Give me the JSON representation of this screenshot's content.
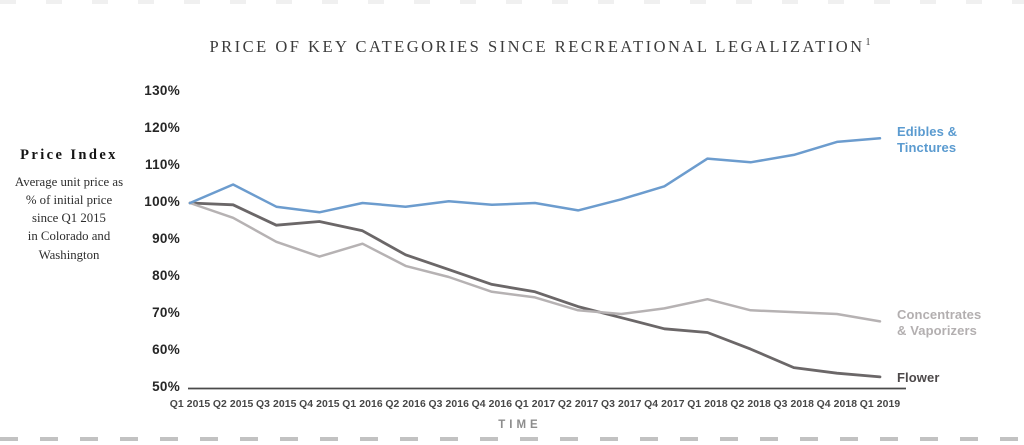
{
  "title": {
    "text": "PRICE OF KEY CATEGORIES SINCE RECREATIONAL LEGALIZATION",
    "superscript": "1"
  },
  "sidebar": {
    "heading": "Price Index",
    "description_lines": [
      "Average unit price as",
      "% of initial price",
      "since Q1 2015",
      "in Colorado and",
      "Washington"
    ]
  },
  "axes": {
    "x_label": "TIME",
    "axis_color": "#4a4a4a"
  },
  "legend": [
    {
      "label": "Edibles & Tinctures",
      "lines": [
        "Edibles &",
        "Tinctures"
      ],
      "color": "#5b9bd0",
      "series_index": 0
    },
    {
      "label": "Concentrates & Vaporizers",
      "lines": [
        "Concentrates",
        "& Vaporizers"
      ],
      "color": "#b3afb0",
      "series_index": 1
    },
    {
      "label": "Flower",
      "lines": [
        "Flower"
      ],
      "color": "#4d494a",
      "series_index": 2
    }
  ],
  "chart_data": {
    "type": "line",
    "title": "PRICE OF KEY CATEGORIES SINCE RECREATIONAL LEGALIZATION",
    "xlabel": "TIME",
    "ylabel": "Price Index (average unit price as % of initial price since Q1 2015 in Colorado and Washington)",
    "categories": [
      "Q1 2015",
      "Q2 2015",
      "Q3 2015",
      "Q4 2015",
      "Q1 2016",
      "Q2 2016",
      "Q3 2016",
      "Q4 2016",
      "Q1 2017",
      "Q2 2017",
      "Q3 2017",
      "Q4 2017",
      "Q1 2018",
      "Q2 2018",
      "Q3 2018",
      "Q4 2018",
      "Q1 2019"
    ],
    "series": [
      {
        "name": "Edibles & Tinctures",
        "color": "#6c9cce",
        "values": [
          100,
          105,
          99,
          97.5,
          100,
          99,
          100.5,
          99.5,
          100,
          98,
          101,
          104.5,
          112,
          111,
          113,
          116.5,
          117.5
        ]
      },
      {
        "name": "Concentrates & Vaporizers",
        "color": "#b6b2b3",
        "values": [
          100,
          96,
          89.5,
          85.5,
          89,
          83,
          80,
          76,
          74.5,
          71,
          70,
          71.5,
          74,
          71,
          70.5,
          70,
          68
        ]
      },
      {
        "name": "Flower",
        "color": "#6b6768",
        "values": [
          100,
          99.5,
          94,
          95,
          92.5,
          86,
          82,
          78,
          76,
          72,
          69,
          66,
          65,
          60.5,
          55.5,
          54,
          53
        ]
      }
    ],
    "yticks": [
      130,
      120,
      110,
      100,
      90,
      80,
      70,
      60,
      50
    ],
    "ytick_suffix": "%",
    "ylim": [
      50,
      130
    ],
    "grid": false,
    "legend_position": "right"
  }
}
